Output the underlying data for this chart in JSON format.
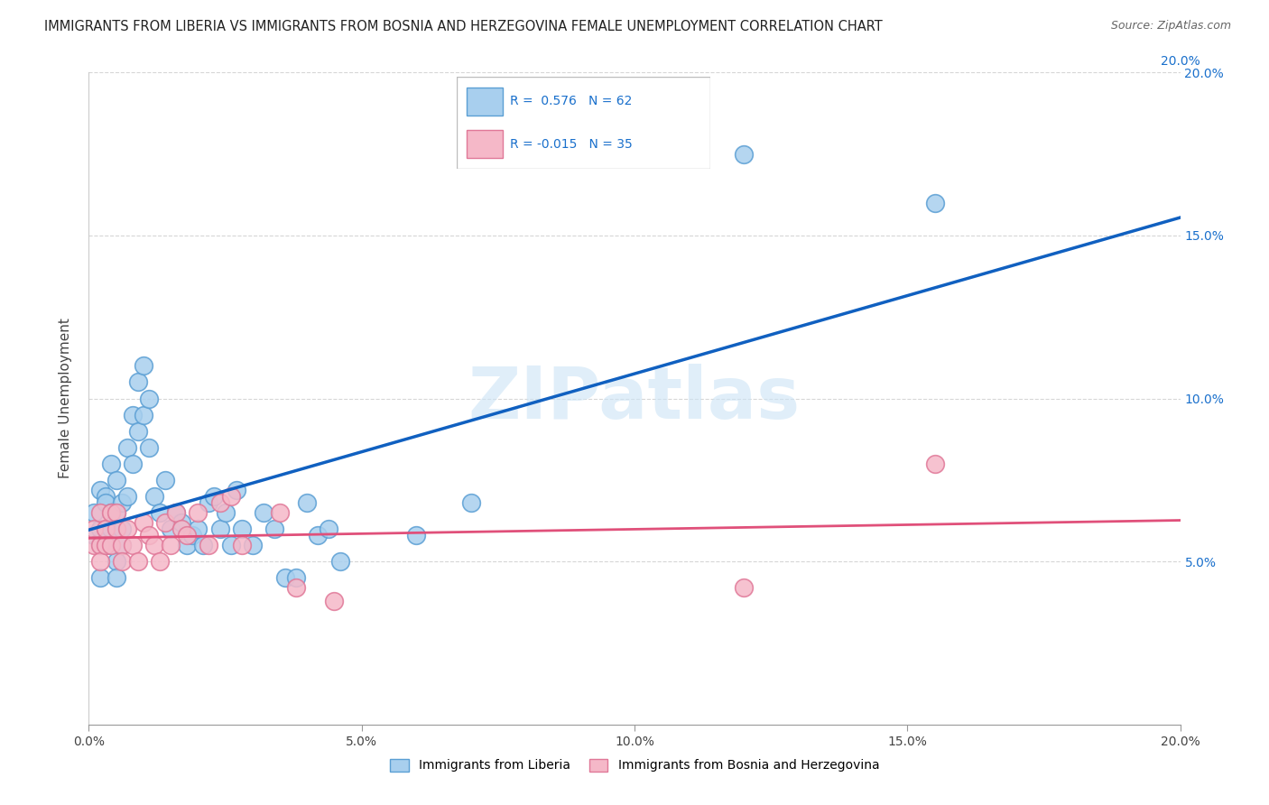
{
  "title": "IMMIGRANTS FROM LIBERIA VS IMMIGRANTS FROM BOSNIA AND HERZEGOVINA FEMALE UNEMPLOYMENT CORRELATION CHART",
  "source": "Source: ZipAtlas.com",
  "ylabel": "Female Unemployment",
  "xlim": [
    0.0,
    0.2
  ],
  "ylim": [
    0.0,
    0.2
  ],
  "liberia_scatter_color": "#a8cfee",
  "liberia_edge_color": "#5b9fd4",
  "bosnia_scatter_color": "#f5b8c8",
  "bosnia_edge_color": "#e07898",
  "blue_line_color": "#1060c0",
  "pink_line_color": "#e0507a",
  "R_liberia": "0.576",
  "N_liberia": "62",
  "R_bosnia": "-0.015",
  "N_bosnia": "35",
  "watermark": "ZIPatlas",
  "liberia_x": [
    0.001,
    0.001,
    0.002,
    0.002,
    0.002,
    0.002,
    0.003,
    0.003,
    0.003,
    0.003,
    0.004,
    0.004,
    0.004,
    0.004,
    0.005,
    0.005,
    0.005,
    0.005,
    0.005,
    0.006,
    0.006,
    0.006,
    0.007,
    0.007,
    0.008,
    0.008,
    0.009,
    0.009,
    0.01,
    0.01,
    0.011,
    0.011,
    0.012,
    0.013,
    0.014,
    0.015,
    0.016,
    0.017,
    0.018,
    0.019,
    0.02,
    0.021,
    0.022,
    0.023,
    0.024,
    0.025,
    0.026,
    0.027,
    0.028,
    0.03,
    0.032,
    0.034,
    0.036,
    0.038,
    0.04,
    0.042,
    0.044,
    0.046,
    0.06,
    0.07,
    0.12,
    0.155
  ],
  "liberia_y": [
    0.058,
    0.065,
    0.06,
    0.055,
    0.072,
    0.045,
    0.06,
    0.07,
    0.055,
    0.068,
    0.08,
    0.065,
    0.06,
    0.055,
    0.075,
    0.065,
    0.06,
    0.05,
    0.045,
    0.068,
    0.06,
    0.055,
    0.085,
    0.07,
    0.095,
    0.08,
    0.105,
    0.09,
    0.11,
    0.095,
    0.1,
    0.085,
    0.07,
    0.065,
    0.075,
    0.06,
    0.065,
    0.062,
    0.055,
    0.058,
    0.06,
    0.055,
    0.068,
    0.07,
    0.06,
    0.065,
    0.055,
    0.072,
    0.06,
    0.055,
    0.065,
    0.06,
    0.045,
    0.045,
    0.068,
    0.058,
    0.06,
    0.05,
    0.058,
    0.068,
    0.175,
    0.16
  ],
  "bosnia_x": [
    0.001,
    0.001,
    0.002,
    0.002,
    0.002,
    0.003,
    0.003,
    0.004,
    0.004,
    0.005,
    0.005,
    0.006,
    0.006,
    0.007,
    0.008,
    0.009,
    0.01,
    0.011,
    0.012,
    0.013,
    0.014,
    0.015,
    0.016,
    0.017,
    0.018,
    0.02,
    0.022,
    0.024,
    0.026,
    0.028,
    0.035,
    0.038,
    0.045,
    0.12,
    0.155
  ],
  "bosnia_y": [
    0.06,
    0.055,
    0.065,
    0.055,
    0.05,
    0.06,
    0.055,
    0.065,
    0.055,
    0.065,
    0.06,
    0.055,
    0.05,
    0.06,
    0.055,
    0.05,
    0.062,
    0.058,
    0.055,
    0.05,
    0.062,
    0.055,
    0.065,
    0.06,
    0.058,
    0.065,
    0.055,
    0.068,
    0.07,
    0.055,
    0.065,
    0.042,
    0.038,
    0.042,
    0.08
  ]
}
